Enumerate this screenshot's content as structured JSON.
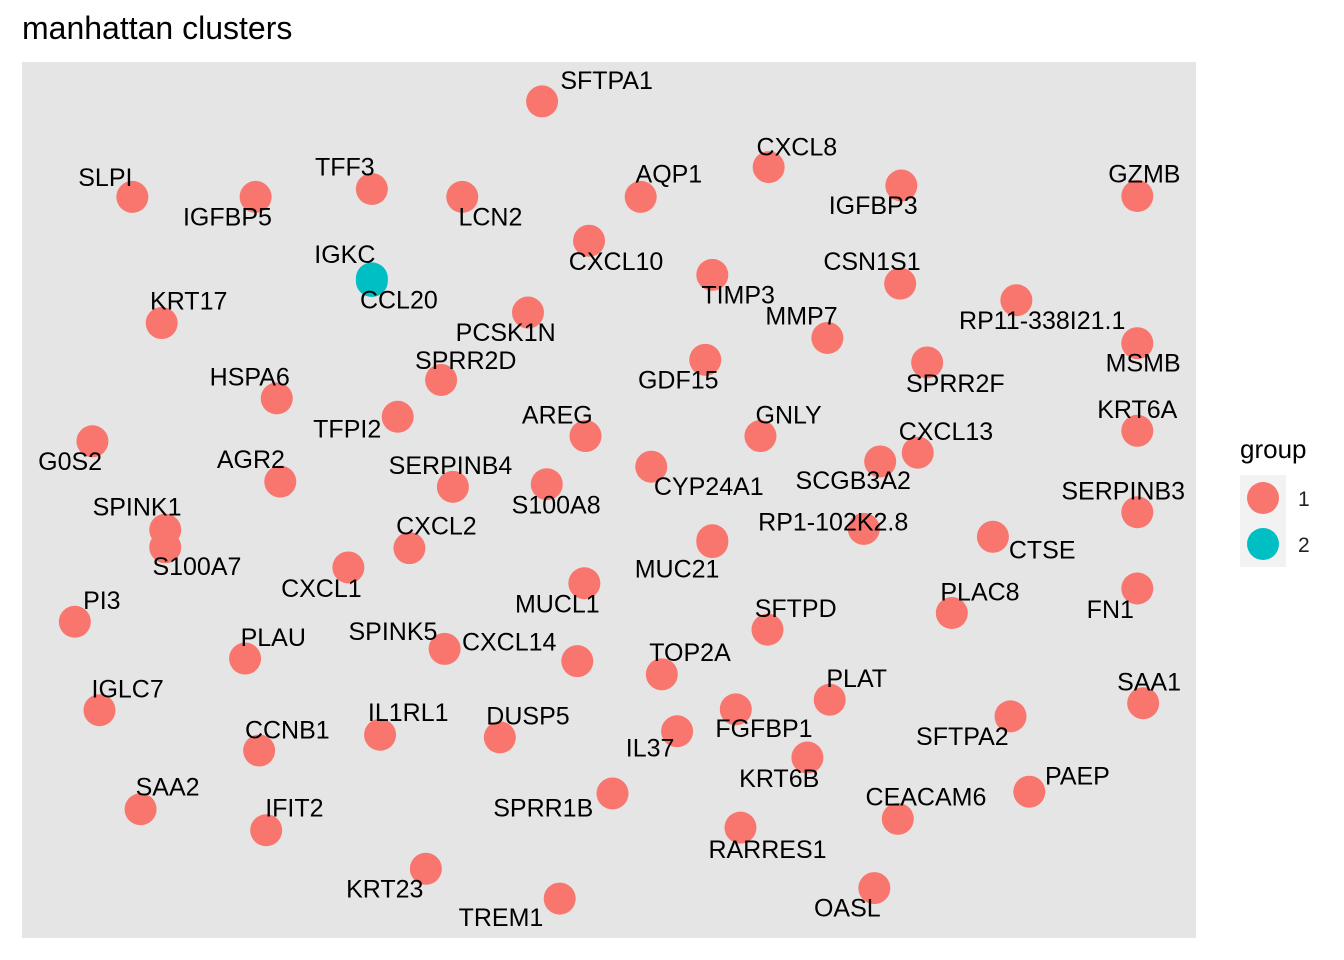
{
  "chart_data": {
    "type": "scatter",
    "title": "manhattan clusters",
    "xlabel": "",
    "ylabel": "",
    "grid": false,
    "axis_ticks": false,
    "legend_position": "right",
    "xlim": [
      0,
      1
    ],
    "ylim": [
      0,
      1
    ],
    "legend": {
      "title": "group",
      "entries": [
        {
          "label": "1",
          "color": "#F8766D"
        },
        {
          "label": "2",
          "color": "#00BFC4"
        }
      ]
    },
    "points": [
      {
        "name": "SFTPA1",
        "group": "1",
        "x": 0.443,
        "y": 0.955,
        "label_dx": 0.055,
        "label_dy": 0.022
      },
      {
        "name": "CXCL8",
        "group": "1",
        "x": 0.636,
        "y": 0.88,
        "label_dx": 0.024,
        "label_dy": 0.021
      },
      {
        "name": "SLPI",
        "group": "1",
        "x": 0.094,
        "y": 0.846,
        "label_dx": -0.023,
        "label_dy": 0.02
      },
      {
        "name": "TFF3",
        "group": "1",
        "x": 0.298,
        "y": 0.855,
        "label_dx": -0.023,
        "label_dy": 0.023
      },
      {
        "name": "IGFBP5",
        "group": "1",
        "x": 0.199,
        "y": 0.846,
        "label_dx": -0.024,
        "label_dy": -0.025
      },
      {
        "name": "LCN2",
        "group": "1",
        "x": 0.375,
        "y": 0.846,
        "label_dx": 0.024,
        "label_dy": -0.025
      },
      {
        "name": "AQP1",
        "group": "1",
        "x": 0.527,
        "y": 0.846,
        "label_dx": 0.024,
        "label_dy": 0.024
      },
      {
        "name": "IGFBP3",
        "group": "1",
        "x": 0.749,
        "y": 0.859,
        "label_dx": -0.024,
        "label_dy": -0.025
      },
      {
        "name": "GZMB",
        "group": "1",
        "x": 0.95,
        "y": 0.847,
        "label_dx": 0.006,
        "label_dy": 0.023
      },
      {
        "name": "CXCL10",
        "group": "1",
        "x": 0.483,
        "y": 0.796,
        "label_dx": 0.023,
        "label_dy": -0.026
      },
      {
        "name": "IGKC",
        "group": "2",
        "x": 0.298,
        "y": 0.753,
        "label_dx": -0.023,
        "label_dy": 0.025
      },
      {
        "name": "CCL20",
        "group": "2",
        "x": 0.298,
        "y": 0.75,
        "label_dx": 0.023,
        "label_dy": -0.024
      },
      {
        "name": "TIMP3",
        "group": "1",
        "x": 0.588,
        "y": 0.757,
        "label_dx": 0.022,
        "label_dy": -0.025
      },
      {
        "name": "CSN1S1",
        "group": "1",
        "x": 0.748,
        "y": 0.747,
        "label_dx": -0.024,
        "label_dy": 0.023
      },
      {
        "name": "RP11-338I21.1",
        "group": "1",
        "x": 0.847,
        "y": 0.728,
        "label_dx": 0.022,
        "label_dy": -0.025
      },
      {
        "name": "KRT17",
        "group": "1",
        "x": 0.119,
        "y": 0.702,
        "label_dx": 0.023,
        "label_dy": 0.023
      },
      {
        "name": "PCSK1N",
        "group": "1",
        "x": 0.431,
        "y": 0.714,
        "label_dx": -0.019,
        "label_dy": -0.025
      },
      {
        "name": "MMP7",
        "group": "1",
        "x": 0.686,
        "y": 0.685,
        "label_dx": -0.022,
        "label_dy": 0.023
      },
      {
        "name": "MSMB",
        "group": "1",
        "x": 0.95,
        "y": 0.679,
        "label_dx": 0.005,
        "label_dy": -0.025
      },
      {
        "name": "HSPA6",
        "group": "1",
        "x": 0.217,
        "y": 0.616,
        "label_dx": -0.023,
        "label_dy": 0.022
      },
      {
        "name": "SPRR2D",
        "group": "1",
        "x": 0.357,
        "y": 0.637,
        "label_dx": 0.021,
        "label_dy": 0.02
      },
      {
        "name": "GDF15",
        "group": "1",
        "x": 0.582,
        "y": 0.66,
        "label_dx": -0.023,
        "label_dy": -0.025
      },
      {
        "name": "SPRR2F",
        "group": "1",
        "x": 0.771,
        "y": 0.657,
        "label_dx": 0.024,
        "label_dy": -0.026
      },
      {
        "name": "TFPI2",
        "group": "1",
        "x": 0.32,
        "y": 0.595,
        "label_dx": -0.043,
        "label_dy": -0.016
      },
      {
        "name": "AREG",
        "group": "1",
        "x": 0.48,
        "y": 0.573,
        "label_dx": -0.024,
        "label_dy": 0.022
      },
      {
        "name": "GNLY",
        "group": "1",
        "x": 0.629,
        "y": 0.573,
        "label_dx": 0.024,
        "label_dy": 0.022
      },
      {
        "name": "KRT6A",
        "group": "1",
        "x": 0.95,
        "y": 0.579,
        "label_dx": 0.0,
        "label_dy": 0.022
      },
      {
        "name": "G0S2",
        "group": "1",
        "x": 0.06,
        "y": 0.567,
        "label_dx": -0.019,
        "label_dy": -0.025
      },
      {
        "name": "CXCL13",
        "group": "1",
        "x": 0.763,
        "y": 0.554,
        "label_dx": 0.024,
        "label_dy": 0.022
      },
      {
        "name": "SCGB3A2",
        "group": "1",
        "x": 0.731,
        "y": 0.544,
        "label_dx": -0.023,
        "label_dy": -0.024
      },
      {
        "name": "CYP24A1",
        "group": "1",
        "x": 0.536,
        "y": 0.538,
        "label_dx": 0.049,
        "label_dy": -0.025
      },
      {
        "name": "AGR2",
        "group": "1",
        "x": 0.22,
        "y": 0.521,
        "label_dx": -0.025,
        "label_dy": 0.023
      },
      {
        "name": "SERPINB4",
        "group": "1",
        "x": 0.367,
        "y": 0.515,
        "label_dx": -0.002,
        "label_dy": 0.022
      },
      {
        "name": "S100A8",
        "group": "1",
        "x": 0.447,
        "y": 0.518,
        "label_dx": 0.008,
        "label_dy": -0.026
      },
      {
        "name": "SERPINB3",
        "group": "1",
        "x": 0.95,
        "y": 0.486,
        "label_dx": -0.012,
        "label_dy": 0.022
      },
      {
        "name": "RP1-102K2.8",
        "group": "1",
        "x": 0.717,
        "y": 0.467,
        "label_dx": -0.026,
        "label_dy": 0.006
      },
      {
        "name": "RP1-102K2.8 point",
        "group": "1",
        "x": 0.588,
        "y": 0.454,
        "hidden_label": true
      },
      {
        "name": "CTSE",
        "group": "1",
        "x": 0.827,
        "y": 0.458,
        "label_dx": 0.042,
        "label_dy": -0.017
      },
      {
        "name": "SPINK1",
        "group": "1",
        "x": 0.122,
        "y": 0.466,
        "label_dx": -0.024,
        "label_dy": 0.024
      },
      {
        "name": "S100A7",
        "group": "1",
        "x": 0.122,
        "y": 0.446,
        "label_dx": 0.027,
        "label_dy": -0.024
      },
      {
        "name": "CXCL2",
        "group": "1",
        "x": 0.33,
        "y": 0.445,
        "label_dx": 0.023,
        "label_dy": 0.023
      },
      {
        "name": "MUC21",
        "group": "1",
        "x": 0.588,
        "y": 0.452,
        "hidden_label": false,
        "label_dx": -0.03,
        "label_dy": -0.033
      },
      {
        "name": "CXCL1",
        "group": "1",
        "x": 0.278,
        "y": 0.423,
        "label_dx": -0.023,
        "label_dy": -0.026
      },
      {
        "name": "MUCL1",
        "group": "1",
        "x": 0.479,
        "y": 0.405,
        "label_dx": -0.023,
        "label_dy": -0.026
      },
      {
        "name": "FN1",
        "group": "1",
        "x": 0.95,
        "y": 0.399,
        "label_dx": -0.023,
        "label_dy": -0.026
      },
      {
        "name": "PI3",
        "group": "1",
        "x": 0.045,
        "y": 0.361,
        "label_dx": 0.023,
        "label_dy": 0.022
      },
      {
        "name": "SFTPD",
        "group": "1",
        "x": 0.635,
        "y": 0.352,
        "label_dx": 0.024,
        "label_dy": 0.022
      },
      {
        "name": "PLAC8",
        "group": "1",
        "x": 0.792,
        "y": 0.371,
        "label_dx": 0.024,
        "label_dy": 0.022
      },
      {
        "name": "PLAU",
        "group": "1",
        "x": 0.19,
        "y": 0.319,
        "label_dx": 0.024,
        "label_dy": 0.022
      },
      {
        "name": "SPINK5",
        "group": "1",
        "x": 0.36,
        "y": 0.33,
        "label_dx": -0.044,
        "label_dy": 0.018
      },
      {
        "name": "CXCL14",
        "group": "1",
        "x": 0.473,
        "y": 0.316,
        "label_dx": -0.058,
        "label_dy": 0.02
      },
      {
        "name": "TOP2A",
        "group": "1",
        "x": 0.545,
        "y": 0.301,
        "label_dx": 0.024,
        "label_dy": 0.023
      },
      {
        "name": "IGLC7",
        "group": "1",
        "x": 0.066,
        "y": 0.26,
        "label_dx": 0.024,
        "label_dy": 0.022
      },
      {
        "name": "PLAT",
        "group": "1",
        "x": 0.688,
        "y": 0.272,
        "label_dx": 0.023,
        "label_dy": 0.022
      },
      {
        "name": "SAA1",
        "group": "1",
        "x": 0.955,
        "y": 0.268,
        "label_dx": 0.005,
        "label_dy": 0.022
      },
      {
        "name": "FGFBP1 point",
        "group": "1",
        "x": 0.608,
        "y": 0.261,
        "hidden_label": true
      },
      {
        "name": "SFTPA2",
        "group": "1",
        "x": 0.842,
        "y": 0.253,
        "label_dx": -0.041,
        "label_dy": -0.025
      },
      {
        "name": "FGFBP1",
        "group": "1",
        "x": 0.558,
        "y": 0.236,
        "label_dx": 0.074,
        "label_dy": 0.001
      },
      {
        "name": "CCNB1",
        "group": "1",
        "x": 0.202,
        "y": 0.214,
        "label_dx": 0.024,
        "label_dy": 0.021
      },
      {
        "name": "IL1RL1",
        "group": "1",
        "x": 0.305,
        "y": 0.232,
        "label_dx": 0.024,
        "label_dy": 0.023
      },
      {
        "name": "DUSP5",
        "group": "1",
        "x": 0.407,
        "y": 0.229,
        "label_dx": 0.024,
        "label_dy": 0.022
      },
      {
        "name": "IL37",
        "group": "1",
        "x": 0.558,
        "y": 0.236,
        "hidden_label": true
      },
      {
        "name": "IL37",
        "group": "1",
        "x": 0.558,
        "y": 0.236,
        "label_dx": -0.023,
        "label_dy": -0.021
      },
      {
        "name": "KRT6B",
        "group": "1",
        "x": 0.669,
        "y": 0.206,
        "label_dx": -0.024,
        "label_dy": -0.026
      },
      {
        "name": "SAA2",
        "group": "1",
        "x": 0.101,
        "y": 0.147,
        "label_dx": 0.023,
        "label_dy": 0.023
      },
      {
        "name": "SPRR1B",
        "group": "1",
        "x": 0.503,
        "y": 0.165,
        "label_dx": -0.059,
        "label_dy": -0.019
      },
      {
        "name": "PAEP",
        "group": "1",
        "x": 0.858,
        "y": 0.167,
        "label_dx": 0.041,
        "label_dy": 0.016
      },
      {
        "name": "IFIT2",
        "group": "1",
        "x": 0.208,
        "y": 0.123,
        "label_dx": 0.024,
        "label_dy": 0.023
      },
      {
        "name": "CEACAM6",
        "group": "1",
        "x": 0.746,
        "y": 0.136,
        "label_dx": 0.024,
        "label_dy": 0.023
      },
      {
        "name": "RARRES1",
        "group": "1",
        "x": 0.612,
        "y": 0.126,
        "label_dx": 0.023,
        "label_dy": -0.027
      },
      {
        "name": "KRT23",
        "group": "1",
        "x": 0.344,
        "y": 0.079,
        "label_dx": -0.035,
        "label_dy": -0.025
      },
      {
        "name": "OASL",
        "group": "1",
        "x": 0.726,
        "y": 0.057,
        "label_dx": -0.023,
        "label_dy": -0.025
      },
      {
        "name": "TREM1",
        "group": "1",
        "x": 0.458,
        "y": 0.045,
        "label_dx": -0.05,
        "label_dy": -0.024
      }
    ]
  }
}
